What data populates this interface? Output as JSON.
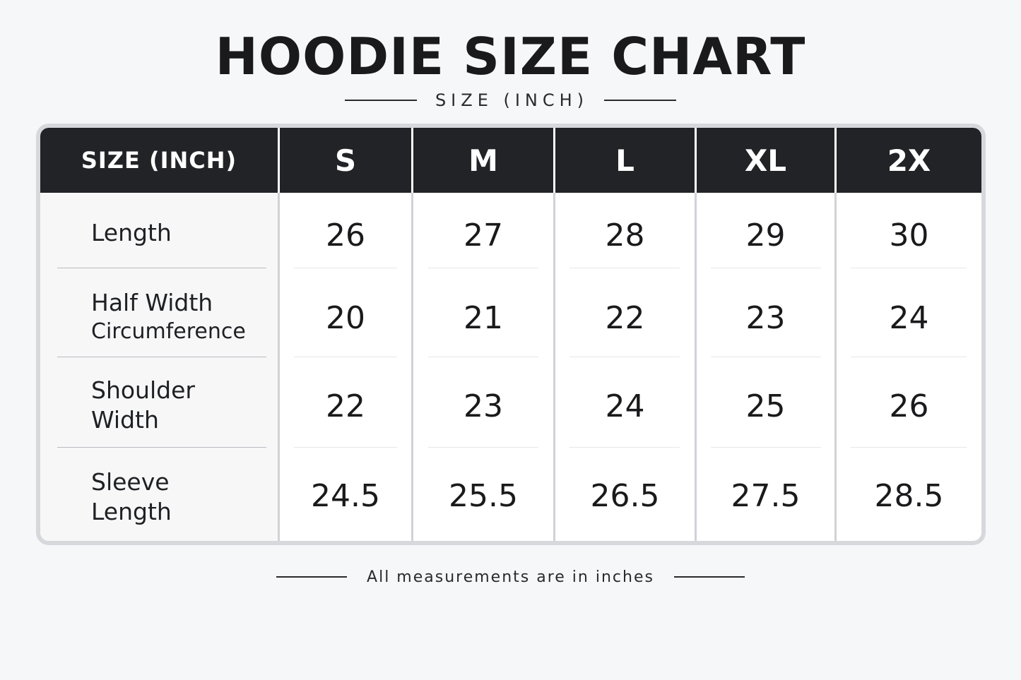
{
  "title": "HOODIE SIZE CHART",
  "subtitle": "SIZE (INCH)",
  "table": {
    "header_label": "SIZE (INCH)",
    "sizes": [
      "S",
      "M",
      "L",
      "XL",
      "2X"
    ],
    "rows": [
      {
        "label_lines": [
          "Length"
        ],
        "values": [
          "26",
          "27",
          "28",
          "29",
          "30"
        ]
      },
      {
        "label_lines": [
          "Half Width",
          "Circumference"
        ],
        "values": [
          "20",
          "21",
          "22",
          "23",
          "24"
        ]
      },
      {
        "label_lines": [
          "Shoulder",
          "Width"
        ],
        "values": [
          "22",
          "23",
          "24",
          "25",
          "26"
        ]
      },
      {
        "label_lines": [
          "Sleeve",
          "Length"
        ],
        "values": [
          "24.5",
          "25.5",
          "26.5",
          "27.5",
          "28.5"
        ]
      }
    ]
  },
  "footer": "All measurements are in inches",
  "colors": {
    "background": "#f6f7f9",
    "header_background": "#222326",
    "header_text": "#ffffff",
    "text": "#1a1a1c"
  }
}
